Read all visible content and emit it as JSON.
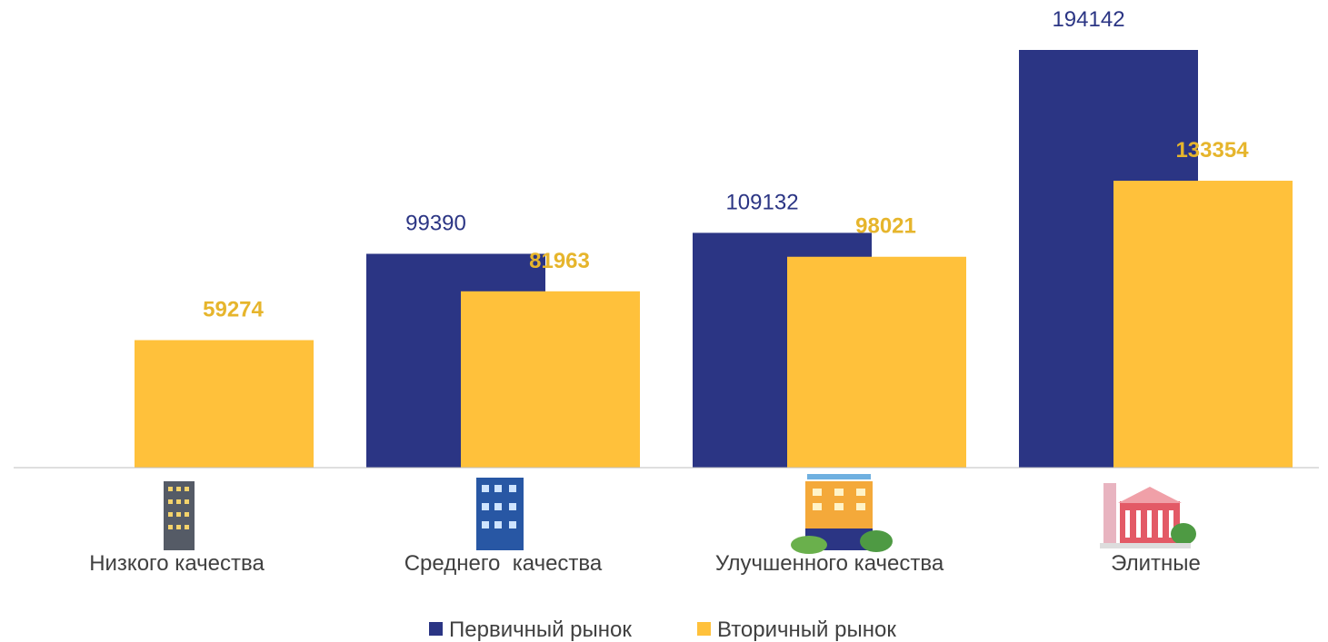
{
  "chart_data": {
    "type": "bar",
    "categories": [
      "Низкого качества",
      "Среднего  качества",
      "Улучшенного качества",
      "Элитные"
    ],
    "series": [
      {
        "name": "Первичный рынок",
        "color": "#2b3584",
        "values": [
          null,
          99390,
          109132,
          194142
        ]
      },
      {
        "name": "Вторичный рынок",
        "color": "#ffc13b",
        "values": [
          59274,
          81963,
          98021,
          133354
        ]
      }
    ],
    "legend": "bottom"
  }
}
